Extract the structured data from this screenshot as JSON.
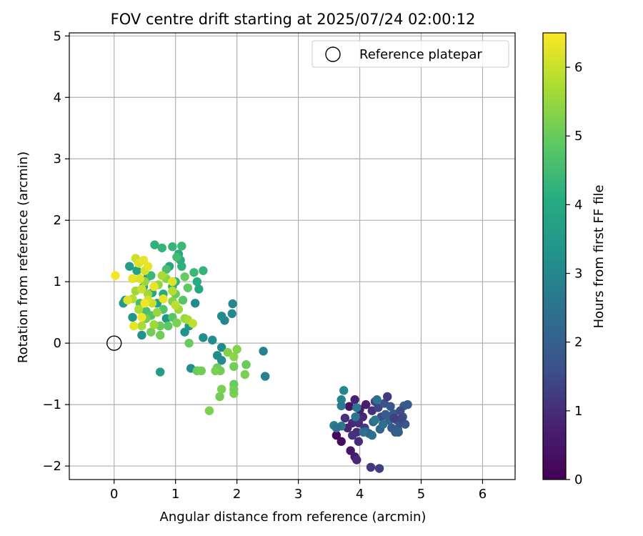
{
  "chart_data": {
    "type": "scatter",
    "title": "FOV centre drift starting at 2025/07/24 02:00:12",
    "xlabel": "Angular distance from reference (arcmin)",
    "ylabel": "Rotation from reference (arcmin)",
    "xlim": [
      -0.73,
      6.53
    ],
    "ylim": [
      -2.22,
      5.05
    ],
    "xticks": [
      0,
      1,
      2,
      3,
      4,
      5,
      6
    ],
    "yticks": [
      -2,
      -1,
      0,
      1,
      2,
      3,
      4,
      5
    ],
    "grid": true,
    "legend": {
      "position": "top-right",
      "entries": [
        "Reference platepar"
      ]
    },
    "reference": {
      "x": 0,
      "y": 0,
      "label": "Reference platepar"
    },
    "colorbar": {
      "label": "Hours from first FF file",
      "range": [
        0,
        6.5
      ],
      "ticks": [
        0,
        1,
        2,
        3,
        4,
        5,
        6
      ],
      "colormap": "viridis"
    },
    "points": [
      {
        "x": 3.62,
        "y": -1.5,
        "c": 0.2
      },
      {
        "x": 3.7,
        "y": -1.6,
        "c": 0.3
      },
      {
        "x": 3.85,
        "y": -1.75,
        "c": 0.5
      },
      {
        "x": 3.92,
        "y": -1.85,
        "c": 0.6
      },
      {
        "x": 3.8,
        "y": -1.38,
        "c": 0.8
      },
      {
        "x": 3.88,
        "y": -1.3,
        "c": 0.9
      },
      {
        "x": 3.95,
        "y": -1.45,
        "c": 1.0
      },
      {
        "x": 4.05,
        "y": -1.2,
        "c": 0.9
      },
      {
        "x": 4.1,
        "y": -1.0,
        "c": 0.7
      },
      {
        "x": 3.83,
        "y": -1.03,
        "c": 0.4
      },
      {
        "x": 3.92,
        "y": -0.92,
        "c": 0.8
      },
      {
        "x": 4.0,
        "y": -1.08,
        "c": 0.7
      },
      {
        "x": 3.98,
        "y": -1.3,
        "c": 1.0
      },
      {
        "x": 4.08,
        "y": -1.38,
        "c": 1.2
      },
      {
        "x": 3.76,
        "y": -1.22,
        "c": 1.1
      },
      {
        "x": 4.2,
        "y": -1.1,
        "c": 1.1
      },
      {
        "x": 4.25,
        "y": -0.95,
        "c": 1.3
      },
      {
        "x": 4.3,
        "y": -1.05,
        "c": 1.4
      },
      {
        "x": 4.35,
        "y": -1.2,
        "c": 1.5
      },
      {
        "x": 4.4,
        "y": -0.98,
        "c": 1.6
      },
      {
        "x": 4.45,
        "y": -0.87,
        "c": 1.2
      },
      {
        "x": 4.5,
        "y": -1.03,
        "c": 1.7
      },
      {
        "x": 4.55,
        "y": -1.15,
        "c": 1.8
      },
      {
        "x": 4.6,
        "y": -1.25,
        "c": 1.7
      },
      {
        "x": 4.62,
        "y": -1.4,
        "c": 1.9
      },
      {
        "x": 4.65,
        "y": -1.3,
        "c": 1.6
      },
      {
        "x": 4.7,
        "y": -1.2,
        "c": 1.8
      },
      {
        "x": 4.72,
        "y": -1.02,
        "c": 2.0
      },
      {
        "x": 4.78,
        "y": -1.0,
        "c": 1.9
      },
      {
        "x": 4.74,
        "y": -1.32,
        "c": 1.7
      },
      {
        "x": 4.58,
        "y": -1.45,
        "c": 2.0
      },
      {
        "x": 4.52,
        "y": -1.38,
        "c": 1.8
      },
      {
        "x": 4.48,
        "y": -1.26,
        "c": 2.1
      },
      {
        "x": 4.42,
        "y": -1.16,
        "c": 1.9
      },
      {
        "x": 4.66,
        "y": -1.1,
        "c": 1.5
      },
      {
        "x": 4.68,
        "y": -1.22,
        "c": 1.4
      },
      {
        "x": 4.56,
        "y": -1.22,
        "c": 1.3
      },
      {
        "x": 4.63,
        "y": -1.45,
        "c": 2.0
      },
      {
        "x": 4.33,
        "y": -1.4,
        "c": 2.1
      },
      {
        "x": 4.22,
        "y": -1.28,
        "c": 2.2
      },
      {
        "x": 4.15,
        "y": -1.47,
        "c": 2.3
      },
      {
        "x": 4.2,
        "y": -1.5,
        "c": 2.4
      },
      {
        "x": 4.1,
        "y": -1.44,
        "c": 2.0
      },
      {
        "x": 4.18,
        "y": -2.02,
        "c": 1.2
      },
      {
        "x": 4.32,
        "y": -2.04,
        "c": 1.3
      },
      {
        "x": 3.95,
        "y": -1.9,
        "c": 0.9
      },
      {
        "x": 3.98,
        "y": -1.6,
        "c": 1.0
      },
      {
        "x": 3.88,
        "y": -1.5,
        "c": 1.1
      },
      {
        "x": 3.95,
        "y": -1.05,
        "c": 2.6
      },
      {
        "x": 3.93,
        "y": -1.2,
        "c": 2.5
      },
      {
        "x": 3.7,
        "y": -1.35,
        "c": 2.6
      },
      {
        "x": 3.58,
        "y": -1.34,
        "c": 2.8
      },
      {
        "x": 3.7,
        "y": -0.92,
        "c": 2.9
      },
      {
        "x": 3.74,
        "y": -0.77,
        "c": 3.0
      },
      {
        "x": 3.7,
        "y": -1.02,
        "c": 2.7
      },
      {
        "x": 3.62,
        "y": -1.38,
        "c": 2.4
      },
      {
        "x": 4.25,
        "y": -1.25,
        "c": 2.6
      },
      {
        "x": 4.38,
        "y": -1.32,
        "c": 2.4
      },
      {
        "x": 4.28,
        "y": -0.92,
        "c": 2.5
      },
      {
        "x": 4.06,
        "y": -1.45,
        "c": 2.4
      },
      {
        "x": 2.43,
        "y": -0.13,
        "c": 2.9
      },
      {
        "x": 2.46,
        "y": -0.54,
        "c": 2.9
      },
      {
        "x": 1.93,
        "y": 0.64,
        "c": 3.0
      },
      {
        "x": 1.92,
        "y": 0.48,
        "c": 3.1
      },
      {
        "x": 1.8,
        "y": 0.37,
        "c": 3.0
      },
      {
        "x": 1.75,
        "y": 0.44,
        "c": 3.1
      },
      {
        "x": 1.75,
        "y": -0.07,
        "c": 3.1
      },
      {
        "x": 1.68,
        "y": -0.2,
        "c": 3.1
      },
      {
        "x": 1.75,
        "y": -0.28,
        "c": 3.1
      },
      {
        "x": 1.6,
        "y": 0.05,
        "c": 3.2
      },
      {
        "x": 1.45,
        "y": 0.09,
        "c": 3.2
      },
      {
        "x": 1.25,
        "y": -0.41,
        "c": 3.2
      },
      {
        "x": 1.32,
        "y": 0.65,
        "c": 3.1
      },
      {
        "x": 1.15,
        "y": 0.18,
        "c": 3.3
      },
      {
        "x": 0.75,
        "y": -0.47,
        "c": 3.6
      },
      {
        "x": 0.85,
        "y": 0.4,
        "c": 3.4
      },
      {
        "x": 1.22,
        "y": 0.28,
        "c": 3.4
      },
      {
        "x": 0.45,
        "y": 0.13,
        "c": 3.3
      },
      {
        "x": 0.3,
        "y": 0.42,
        "c": 3.4
      },
      {
        "x": 0.15,
        "y": 0.65,
        "c": 3.5
      },
      {
        "x": 0.18,
        "y": 0.7,
        "c": 3.6
      },
      {
        "x": 0.25,
        "y": 1.25,
        "c": 3.6
      },
      {
        "x": 0.37,
        "y": 1.18,
        "c": 3.7
      },
      {
        "x": 0.55,
        "y": 1.08,
        "c": 3.8
      },
      {
        "x": 0.48,
        "y": 0.92,
        "c": 3.8
      },
      {
        "x": 0.62,
        "y": 0.82,
        "c": 3.9
      },
      {
        "x": 0.7,
        "y": 0.65,
        "c": 3.7
      },
      {
        "x": 0.9,
        "y": 1.25,
        "c": 3.9
      },
      {
        "x": 1.05,
        "y": 1.45,
        "c": 4.0
      },
      {
        "x": 1.08,
        "y": 1.35,
        "c": 4.1
      },
      {
        "x": 1.1,
        "y": 1.25,
        "c": 4.2
      },
      {
        "x": 1.35,
        "y": 1.0,
        "c": 4.0
      },
      {
        "x": 1.38,
        "y": 0.88,
        "c": 3.9
      },
      {
        "x": 1.45,
        "y": 1.18,
        "c": 4.3
      },
      {
        "x": 1.3,
        "y": 1.15,
        "c": 4.4
      },
      {
        "x": 1.0,
        "y": 1.0,
        "c": 4.2
      },
      {
        "x": 0.95,
        "y": 0.92,
        "c": 4.0
      },
      {
        "x": 0.8,
        "y": 0.8,
        "c": 4.1
      },
      {
        "x": 0.66,
        "y": 1.6,
        "c": 4.2
      },
      {
        "x": 0.78,
        "y": 1.55,
        "c": 4.3
      },
      {
        "x": 0.95,
        "y": 1.57,
        "c": 4.3
      },
      {
        "x": 1.1,
        "y": 1.58,
        "c": 4.4
      },
      {
        "x": 1.02,
        "y": 1.4,
        "c": 4.5
      },
      {
        "x": 0.85,
        "y": 1.2,
        "c": 4.6
      },
      {
        "x": 0.6,
        "y": 1.1,
        "c": 4.4
      },
      {
        "x": 0.42,
        "y": 0.65,
        "c": 4.5
      },
      {
        "x": 0.52,
        "y": 0.52,
        "c": 4.6
      },
      {
        "x": 0.6,
        "y": 0.45,
        "c": 4.7
      },
      {
        "x": 0.8,
        "y": 0.55,
        "c": 4.7
      },
      {
        "x": 0.95,
        "y": 0.42,
        "c": 4.8
      },
      {
        "x": 0.88,
        "y": 0.28,
        "c": 4.9
      },
      {
        "x": 1.12,
        "y": 0.7,
        "c": 4.8
      },
      {
        "x": 1.2,
        "y": 0.9,
        "c": 4.9
      },
      {
        "x": 1.15,
        "y": 1.08,
        "c": 5.0
      },
      {
        "x": 1.0,
        "y": 0.8,
        "c": 5.0
      },
      {
        "x": 0.75,
        "y": 0.28,
        "c": 5.0
      },
      {
        "x": 0.52,
        "y": 0.4,
        "c": 5.1
      },
      {
        "x": 0.6,
        "y": 0.18,
        "c": 5.1
      },
      {
        "x": 0.75,
        "y": 0.13,
        "c": 5.1
      },
      {
        "x": 1.02,
        "y": 0.33,
        "c": 5.2
      },
      {
        "x": 1.22,
        "y": 0.0,
        "c": 5.0
      },
      {
        "x": 1.35,
        "y": -0.45,
        "c": 5.0
      },
      {
        "x": 1.42,
        "y": -0.45,
        "c": 5.1
      },
      {
        "x": 1.55,
        "y": -1.1,
        "c": 5.2
      },
      {
        "x": 1.72,
        "y": -0.87,
        "c": 5.1
      },
      {
        "x": 1.75,
        "y": -0.75,
        "c": 5.2
      },
      {
        "x": 1.68,
        "y": -0.4,
        "c": 5.0
      },
      {
        "x": 1.73,
        "y": -0.45,
        "c": 5.1
      },
      {
        "x": 1.85,
        "y": -0.15,
        "c": 5.3
      },
      {
        "x": 1.95,
        "y": -0.22,
        "c": 5.4
      },
      {
        "x": 2.0,
        "y": -0.1,
        "c": 5.3
      },
      {
        "x": 1.95,
        "y": -0.38,
        "c": 5.1
      },
      {
        "x": 2.13,
        "y": -0.51,
        "c": 5.2
      },
      {
        "x": 2.15,
        "y": -0.35,
        "c": 5.0
      },
      {
        "x": 1.95,
        "y": -0.67,
        "c": 5.0
      },
      {
        "x": 1.95,
        "y": -0.82,
        "c": 5.2
      },
      {
        "x": 1.95,
        "y": -0.75,
        "c": 5.1
      },
      {
        "x": 1.65,
        "y": -0.45,
        "c": 5.2
      },
      {
        "x": 0.95,
        "y": 0.68,
        "c": 5.3
      },
      {
        "x": 0.85,
        "y": 1.05,
        "c": 5.4
      },
      {
        "x": 0.7,
        "y": 0.5,
        "c": 5.5
      },
      {
        "x": 0.72,
        "y": 0.95,
        "c": 5.5
      },
      {
        "x": 0.55,
        "y": 0.8,
        "c": 5.6
      },
      {
        "x": 0.65,
        "y": 0.3,
        "c": 5.6
      },
      {
        "x": 0.45,
        "y": 0.28,
        "c": 5.7
      },
      {
        "x": 0.4,
        "y": 0.55,
        "c": 5.7
      },
      {
        "x": 0.3,
        "y": 0.72,
        "c": 5.8
      },
      {
        "x": 0.35,
        "y": 0.85,
        "c": 5.6
      },
      {
        "x": 0.5,
        "y": 1.0,
        "c": 5.5
      },
      {
        "x": 0.78,
        "y": 1.1,
        "c": 5.7
      },
      {
        "x": 0.95,
        "y": 0.85,
        "c": 5.8
      },
      {
        "x": 1.05,
        "y": 0.55,
        "c": 5.6
      },
      {
        "x": 1.15,
        "y": 0.4,
        "c": 5.5
      },
      {
        "x": 1.2,
        "y": 0.38,
        "c": 5.7
      },
      {
        "x": 1.28,
        "y": 0.32,
        "c": 5.9
      },
      {
        "x": 1.0,
        "y": 0.62,
        "c": 5.9
      },
      {
        "x": 0.62,
        "y": 0.65,
        "c": 6.0
      },
      {
        "x": 0.55,
        "y": 0.7,
        "c": 6.1
      },
      {
        "x": 0.45,
        "y": 0.88,
        "c": 6.0
      },
      {
        "x": 0.42,
        "y": 1.05,
        "c": 6.2
      },
      {
        "x": 0.5,
        "y": 1.18,
        "c": 6.1
      },
      {
        "x": 0.35,
        "y": 1.38,
        "c": 6.0
      },
      {
        "x": 0.4,
        "y": 1.3,
        "c": 6.2
      },
      {
        "x": 0.48,
        "y": 1.35,
        "c": 6.3
      },
      {
        "x": 0.55,
        "y": 1.25,
        "c": 6.3
      },
      {
        "x": 0.3,
        "y": 1.05,
        "c": 6.3
      },
      {
        "x": 0.22,
        "y": 0.7,
        "c": 6.2
      },
      {
        "x": 0.32,
        "y": 0.28,
        "c": 6.3
      },
      {
        "x": 0.45,
        "y": 0.42,
        "c": 6.4
      },
      {
        "x": 0.8,
        "y": 0.72,
        "c": 6.3
      },
      {
        "x": 0.95,
        "y": 1.0,
        "c": 6.2
      },
      {
        "x": 0.02,
        "y": 1.1,
        "c": 6.4
      },
      {
        "x": 0.5,
        "y": 0.65,
        "c": 6.4
      },
      {
        "x": 0.65,
        "y": 0.92,
        "c": 6.3
      }
    ]
  }
}
